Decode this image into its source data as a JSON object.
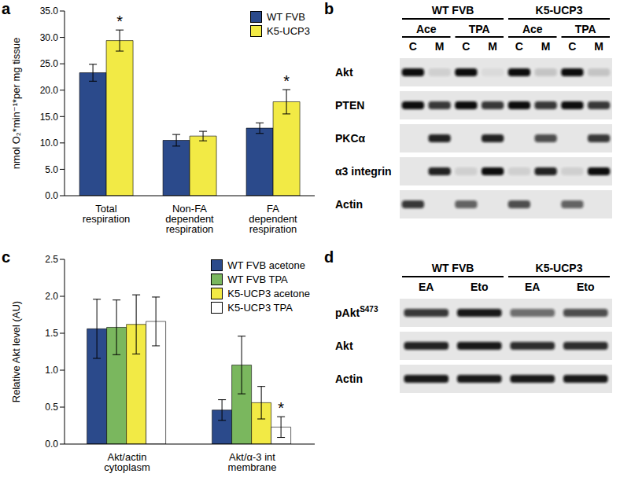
{
  "chart_data": [
    {
      "panel_label": "a",
      "type": "bar",
      "y_label": "nmol O₂*min⁻¹*per mg tissue",
      "categories": [
        "Total respiration",
        "Non-FA dependent respiration",
        "FA dependent respiration"
      ],
      "series": [
        {
          "name": "WT FVB",
          "color": "#2b4a8b",
          "values": [
            23.3,
            10.5,
            12.8
          ],
          "errors": [
            1.6,
            1.1,
            1.0
          ]
        },
        {
          "name": "K5-UCP3",
          "color": "#f2ea45",
          "values": [
            29.4,
            11.3,
            17.8
          ],
          "errors": [
            2.0,
            0.9,
            2.3
          ]
        }
      ],
      "ylim": [
        0,
        35
      ],
      "yticks": [
        {
          "value": 0,
          "label": "0.0"
        },
        {
          "value": 5,
          "label": "5.0"
        },
        {
          "value": 10,
          "label": "10.0"
        },
        {
          "value": 15,
          "label": "15.0"
        },
        {
          "value": 20,
          "label": "20.0"
        },
        {
          "value": 25,
          "label": "25.0"
        },
        {
          "value": 30,
          "label": "30.0"
        },
        {
          "value": 35,
          "label": "35.0"
        }
      ],
      "legend": "top-right",
      "annotations": [
        {
          "text": "*",
          "series": "K5-UCP3",
          "category": "Total respiration"
        },
        {
          "text": "*",
          "series": "K5-UCP3",
          "category": "FA dependent respiration"
        }
      ]
    },
    {
      "panel_label": "c",
      "type": "bar",
      "y_label": "Relative Akt level (AU)",
      "categories": [
        "Akt/actin cytoplasm",
        "Akt/α-3 int membrane"
      ],
      "series": [
        {
          "name": "WT FVB acetone",
          "color": "#2b4a8b",
          "values": [
            1.56,
            0.46
          ],
          "errors": [
            0.4,
            0.14
          ]
        },
        {
          "name": "WT FVB TPA",
          "color": "#7ab75e",
          "values": [
            1.58,
            1.07
          ],
          "errors": [
            0.37,
            0.39
          ]
        },
        {
          "name": "K5-UCP3 acetone",
          "color": "#f2ea45",
          "values": [
            1.62,
            0.56
          ],
          "errors": [
            0.4,
            0.22
          ]
        },
        {
          "name": "K5-UCP3 TPA",
          "color": "#ffffff",
          "values": [
            1.66,
            0.23
          ],
          "errors": [
            0.33,
            0.14
          ]
        }
      ],
      "ylim": [
        0,
        2.5
      ],
      "yticks": [
        {
          "value": 0,
          "label": "0.0"
        },
        {
          "value": 0.5,
          "label": "0.5"
        },
        {
          "value": 1,
          "label": "1.0"
        },
        {
          "value": 1.5,
          "label": "1.5"
        },
        {
          "value": 2,
          "label": "2.0"
        },
        {
          "value": 2.5,
          "label": "2.5"
        }
      ],
      "legend": "top-right",
      "annotations": [
        {
          "text": "*",
          "series": "K5-UCP3 TPA",
          "category": "Akt/α-3 int membrane"
        }
      ]
    }
  ],
  "blots": [
    {
      "panel_label": "b",
      "groups": [
        {
          "label": "WT FVB",
          "subgroups": [
            {
              "label": "Ace",
              "lanes": [
                "C",
                "M"
              ]
            },
            {
              "label": "TPA",
              "lanes": [
                "C",
                "M"
              ]
            }
          ]
        },
        {
          "label": "K5-UCP3",
          "subgroups": [
            {
              "label": "Ace",
              "lanes": [
                "C",
                "M"
              ]
            },
            {
              "label": "TPA",
              "lanes": [
                "C",
                "M"
              ]
            }
          ]
        }
      ],
      "rows": [
        {
          "label": "Akt",
          "bands": [
            1,
            0.1,
            1,
            0.05,
            1,
            0.15,
            1,
            0.15
          ]
        },
        {
          "label": "PTEN",
          "bands": [
            1,
            0.8,
            1,
            0.8,
            1,
            0.8,
            1,
            0.8
          ]
        },
        {
          "label": "PKCα",
          "bands": [
            0,
            0.9,
            0,
            0.9,
            0,
            0.7,
            0,
            0.8
          ]
        },
        {
          "label": "α3 integrin",
          "bands": [
            0,
            0.9,
            0.1,
            1,
            0.1,
            0.9,
            0.1,
            1
          ]
        },
        {
          "label": "Actin",
          "bands": [
            0.8,
            0,
            0.6,
            0,
            0.7,
            0,
            0.6,
            0
          ]
        }
      ]
    },
    {
      "panel_label": "d",
      "groups": [
        {
          "label": "WT FVB",
          "lanes": [
            "EA",
            "Eto"
          ]
        },
        {
          "label": "K5-UCP3",
          "lanes": [
            "EA",
            "Eto"
          ]
        }
      ],
      "rows": [
        {
          "label": "pAkt",
          "label_superscript": "S473",
          "bands": [
            0.8,
            0.95,
            0.55,
            0.7
          ]
        },
        {
          "label": "Akt",
          "bands": [
            0.9,
            0.95,
            0.85,
            0.85
          ]
        },
        {
          "label": "Actin",
          "bands": [
            0.95,
            0.95,
            0.95,
            0.95
          ]
        }
      ]
    }
  ]
}
